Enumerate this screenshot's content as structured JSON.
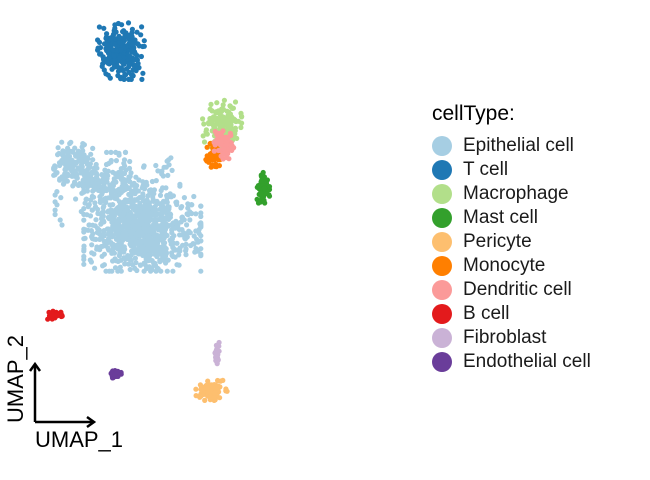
{
  "chart_data": {
    "type": "scatter",
    "title": "",
    "xlabel": "UMAP_1",
    "ylabel": "UMAP_2",
    "grid": false,
    "axes_style": "arrow corner axes, no ticks",
    "legend": {
      "title": "cellType:",
      "placement": "right"
    },
    "xlim": [
      -10,
      12
    ],
    "ylim": [
      -12,
      12
    ],
    "series": [
      {
        "name": "Epithelial cell",
        "color": "#A6CEE3",
        "clusters": [
          {
            "cx": -3.1,
            "cy": 0.5,
            "sx": 1.5,
            "sy": 1.0,
            "n": 900
          },
          {
            "cx": -4.5,
            "cy": 2.8,
            "sx": 1.6,
            "sy": 0.9,
            "n": 200
          },
          {
            "cx": -7.0,
            "cy": 4.2,
            "sx": 0.5,
            "sy": 0.6,
            "n": 120
          },
          {
            "cx": -5.6,
            "cy": 3.3,
            "sx": 0.6,
            "sy": 0.3,
            "n": 80
          }
        ]
      },
      {
        "name": "T cell",
        "color": "#1F78B4",
        "clusters": [
          {
            "cx": -4.3,
            "cy": 10.3,
            "sx": 0.6,
            "sy": 0.7,
            "n": 260
          }
        ]
      },
      {
        "name": "Macrophage",
        "color": "#B2DF8A",
        "clusters": [
          {
            "cx": 1.4,
            "cy": 6.3,
            "sx": 0.5,
            "sy": 0.6,
            "n": 160
          }
        ]
      },
      {
        "name": "Mast cell",
        "color": "#33A02C",
        "clusters": [
          {
            "cx": 3.7,
            "cy": 2.9,
            "sx": 0.17,
            "sy": 0.4,
            "n": 70
          }
        ]
      },
      {
        "name": "Pericyte",
        "color": "#FDBF6F",
        "clusters": [
          {
            "cx": 0.8,
            "cy": -8.2,
            "sx": 0.4,
            "sy": 0.25,
            "n": 90
          }
        ]
      },
      {
        "name": "Monocyte",
        "color": "#FF7F00",
        "clusters": [
          {
            "cx": 0.9,
            "cy": 4.6,
            "sx": 0.2,
            "sy": 0.3,
            "n": 60
          }
        ]
      },
      {
        "name": "Dendritic cell",
        "color": "#FB9A99",
        "clusters": [
          {
            "cx": 1.5,
            "cy": 5.3,
            "sx": 0.25,
            "sy": 0.4,
            "n": 70
          }
        ]
      },
      {
        "name": "B cell",
        "color": "#E31A1C",
        "clusters": [
          {
            "cx": -8.0,
            "cy": -4.1,
            "sx": 0.2,
            "sy": 0.1,
            "n": 35
          }
        ]
      },
      {
        "name": "Fibroblast",
        "color": "#CAB2D6",
        "clusters": [
          {
            "cx": 1.1,
            "cy": -6.2,
            "sx": 0.06,
            "sy": 0.3,
            "n": 30
          }
        ]
      },
      {
        "name": "Endothelial cell",
        "color": "#6A3D9A",
        "clusters": [
          {
            "cx": -4.6,
            "cy": -7.3,
            "sx": 0.15,
            "sy": 0.12,
            "n": 35
          }
        ]
      }
    ]
  }
}
